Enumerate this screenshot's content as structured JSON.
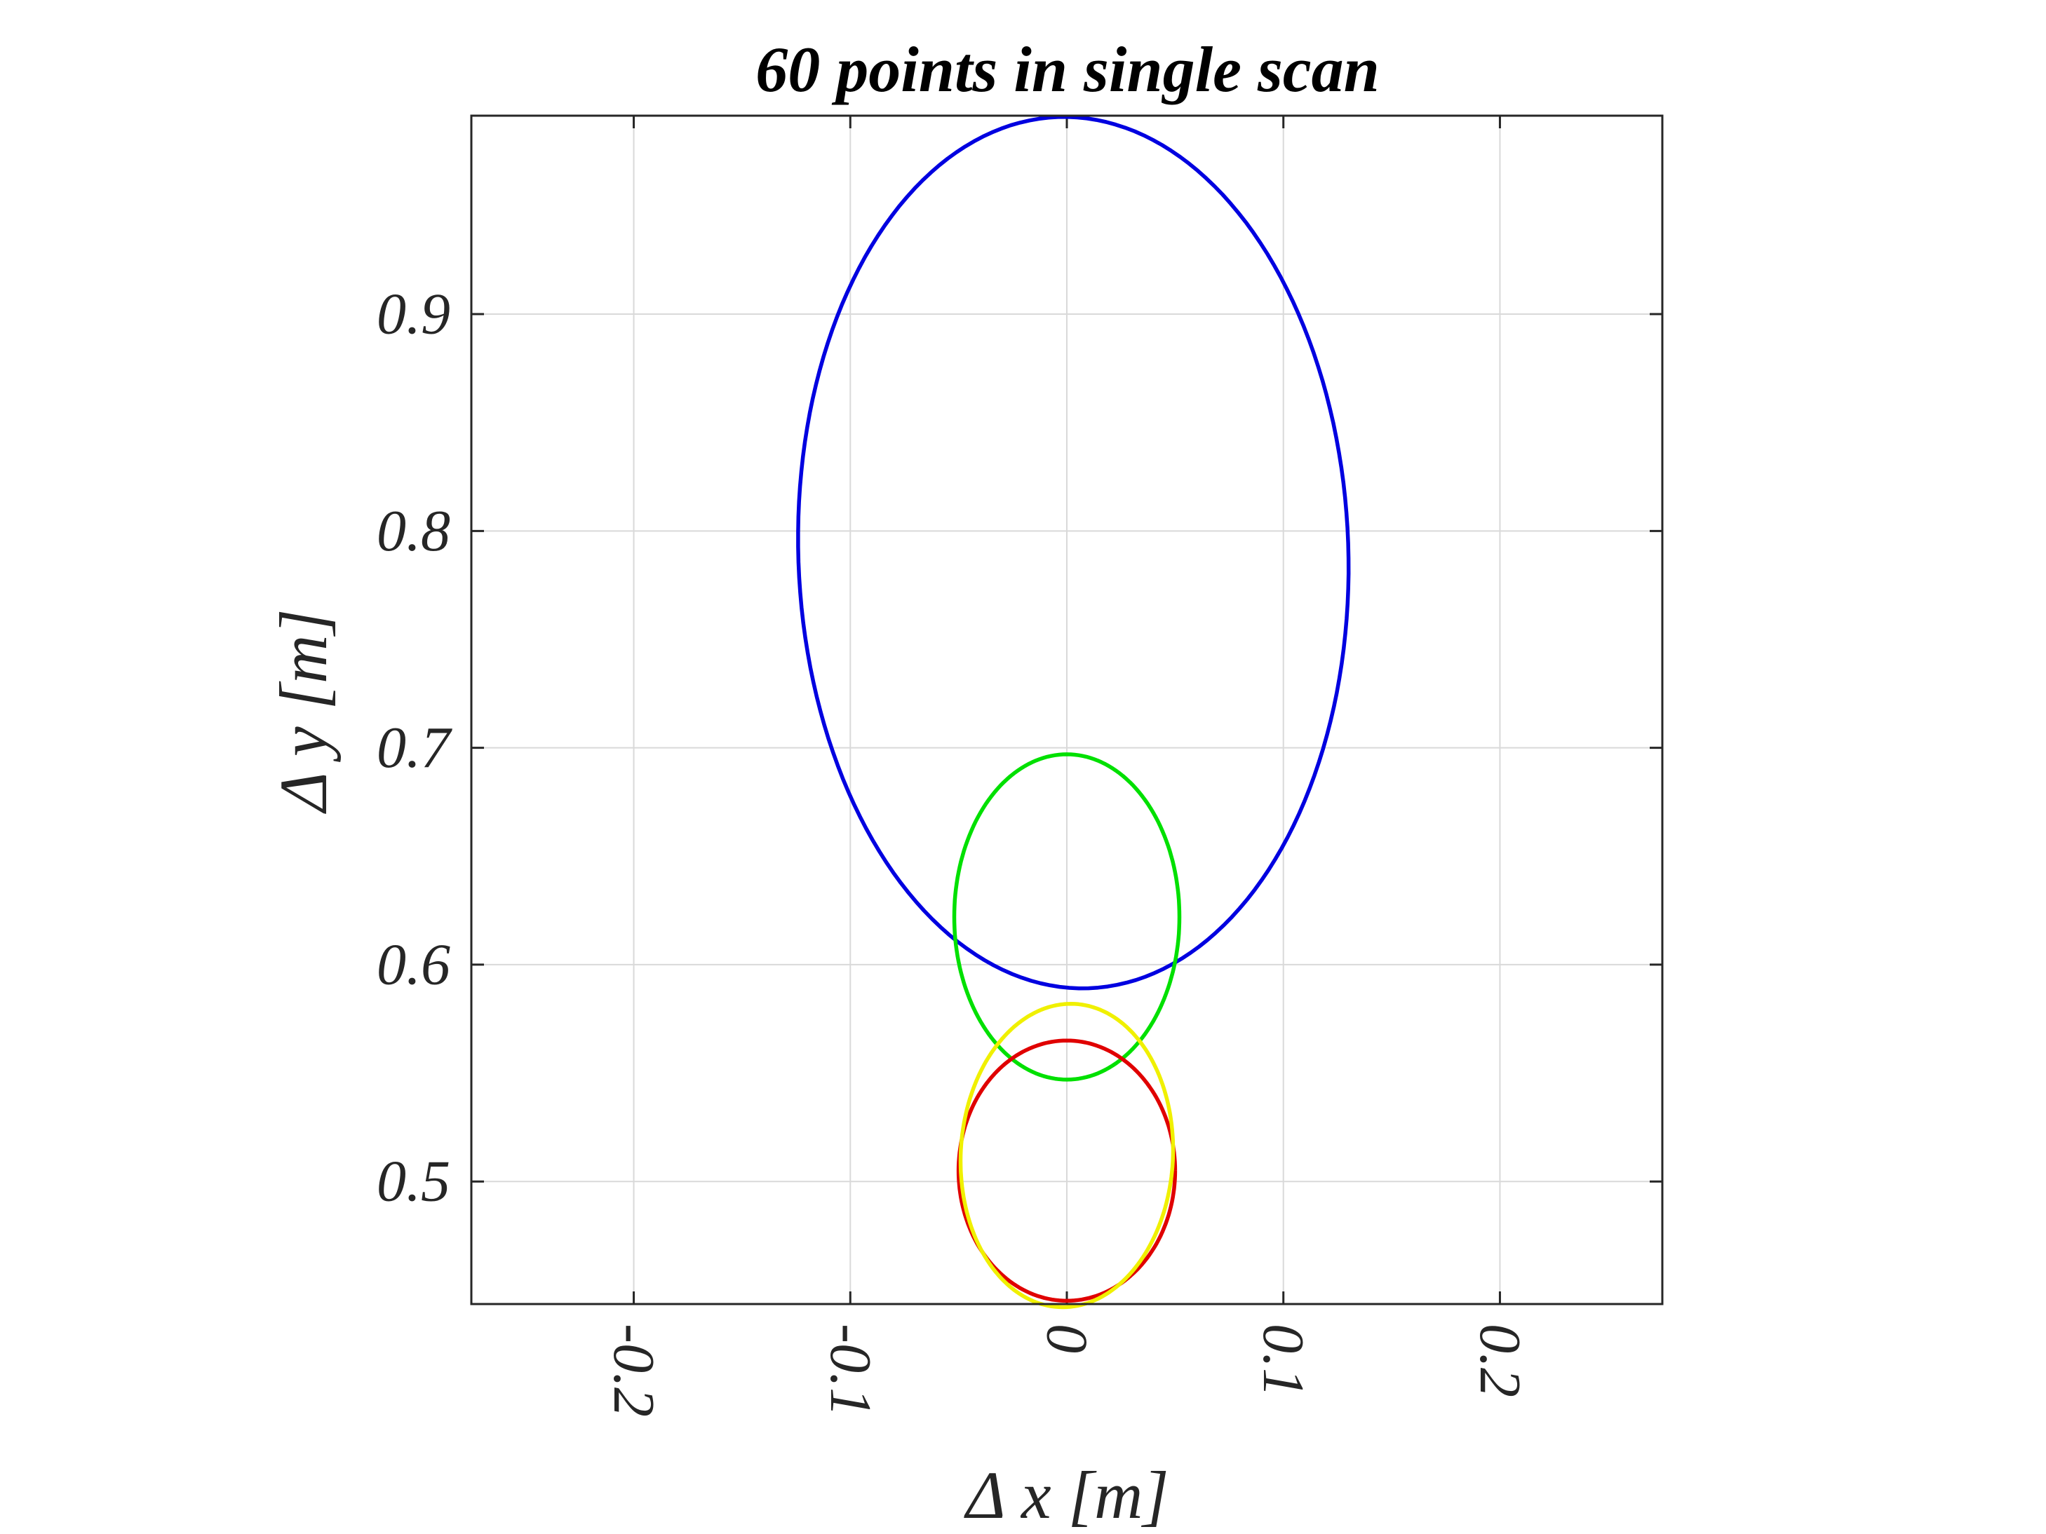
{
  "chart_data": {
    "type": "line",
    "title": "60 points in single scan",
    "xlabel": "Δ x [m]",
    "ylabel": "Δ y [m]",
    "xlim": [
      -0.275,
      0.275
    ],
    "ylim": [
      0.4435,
      0.9915
    ],
    "xticks": [
      -0.2,
      -0.1,
      0,
      0.1,
      0.2
    ],
    "yticks": [
      0.5,
      0.6,
      0.7,
      0.8,
      0.9
    ],
    "xtick_labels": [
      "-0.2",
      "-0.1",
      "0",
      "0.1",
      "0.2"
    ],
    "ytick_labels": [
      "0.5",
      "0.6",
      "0.7",
      "0.8",
      "0.9"
    ],
    "xtick_rotation": 90,
    "grid": true,
    "box": true,
    "series": [
      {
        "color": "#0000e0",
        "shape": "ellipse",
        "center": [
          0.003,
          0.79
        ],
        "semi_axes": [
          0.127,
          0.201
        ],
        "tilt_deg": 2
      },
      {
        "color": "#00e000",
        "shape": "ellipse",
        "center": [
          0.0,
          0.622
        ],
        "semi_axes": [
          0.052,
          0.075
        ],
        "tilt_deg": 0
      },
      {
        "color": "#e00000",
        "shape": "ellipse",
        "center": [
          0.0,
          0.505
        ],
        "semi_axes": [
          0.05,
          0.06
        ],
        "tilt_deg": 0
      },
      {
        "color": "#f0f000",
        "shape": "ellipse",
        "center": [
          0.0,
          0.512
        ],
        "semi_axes": [
          0.049,
          0.07
        ],
        "tilt_deg": -3
      }
    ]
  }
}
